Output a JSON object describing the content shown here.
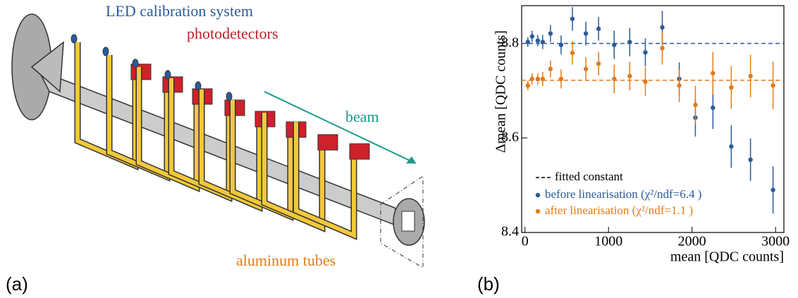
{
  "panel_a": {
    "label": "(a)",
    "annotations": {
      "led": "LED calibration system",
      "photodetectors": "photodetectors",
      "beam": "beam",
      "tubes": "aluminum tubes"
    }
  },
  "panel_b": {
    "label": "(b)"
  },
  "chart_data": {
    "type": "scatter",
    "x_label": "mean [QDC counts]",
    "y_label": "Δmean [QDC counts]",
    "xlim": [
      -40,
      3100
    ],
    "ylim": [
      8.4,
      8.88
    ],
    "xticks": [
      0,
      1000,
      2000,
      3000
    ],
    "yticks": [
      8.4,
      8.6,
      8.8
    ],
    "fit_label": "fitted constant",
    "series": [
      {
        "name": "before linearisation (χ²/ndf=6.4 )",
        "color": "#2a5c9a",
        "fit": 8.8,
        "x": [
          34,
          85,
          153,
          212,
          305,
          432,
          568,
          729,
          881,
          1068,
          1254,
          1441,
          1644,
          1847,
          2040,
          2250,
          2470,
          2700,
          2970
        ],
        "values": [
          8.803,
          8.815,
          8.806,
          8.803,
          8.821,
          8.797,
          8.852,
          8.821,
          8.831,
          8.797,
          8.803,
          8.781,
          8.834,
          8.725,
          8.643,
          8.664,
          8.582,
          8.554,
          8.49
        ],
        "errors": [
          0.01,
          0.012,
          0.012,
          0.015,
          0.018,
          0.02,
          0.025,
          0.025,
          0.025,
          0.03,
          0.03,
          0.03,
          0.035,
          0.035,
          0.04,
          0.045,
          0.045,
          0.045,
          0.05
        ]
      },
      {
        "name": "after linearisation (χ²/ndf=1.1 )",
        "color": "#e07b1a",
        "fit": 8.722,
        "x": [
          34,
          85,
          153,
          212,
          305,
          432,
          568,
          729,
          881,
          1068,
          1254,
          1441,
          1644,
          1847,
          2040,
          2250,
          2470,
          2700,
          2970
        ],
        "values": [
          8.711,
          8.725,
          8.725,
          8.725,
          8.746,
          8.725,
          8.78,
          8.746,
          8.757,
          8.725,
          8.731,
          8.719,
          8.79,
          8.711,
          8.67,
          8.737,
          8.707,
          8.731,
          8.711
        ],
        "errors": [
          0.01,
          0.012,
          0.012,
          0.015,
          0.018,
          0.02,
          0.025,
          0.025,
          0.025,
          0.03,
          0.03,
          0.03,
          0.035,
          0.035,
          0.04,
          0.045,
          0.045,
          0.045,
          0.05
        ]
      }
    ]
  }
}
